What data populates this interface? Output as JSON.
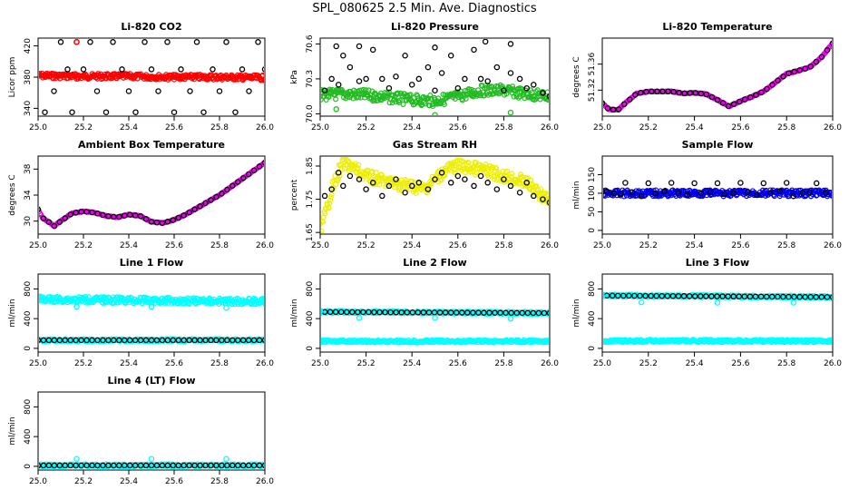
{
  "title": "SPL_080625  2.5 Min. Ave. Diagnostics",
  "chart_data": [
    {
      "type": "scatter",
      "title": "Li-820 CO2",
      "ylabel": "Licor ppm",
      "xlim": [
        25.0,
        26.0
      ],
      "ylim": [
        330,
        430
      ],
      "xticks": [
        "25.0",
        "25.2",
        "25.4",
        "25.6",
        "25.8",
        "26.0"
      ],
      "yticks": [
        "340",
        "380",
        "420"
      ],
      "series": [
        {
          "name": "10 Hz",
          "color": "#ff0000",
          "style": "band",
          "x": [
            25.0,
            25.2,
            25.4,
            25.6,
            25.8,
            26.0
          ],
          "y": [
            382,
            381,
            381,
            380,
            380,
            379
          ],
          "width": 6
        },
        {
          "name": "2.5 min ave",
          "color": "#000000",
          "style": "scatter",
          "x": [
            25.03,
            25.07,
            25.1,
            25.13,
            25.15,
            25.17,
            25.2,
            25.23,
            25.26,
            25.3,
            25.33,
            25.37,
            25.4,
            25.43,
            25.47,
            25.5,
            25.53,
            25.57,
            25.6,
            25.63,
            25.67,
            25.7,
            25.73,
            25.77,
            25.8,
            25.83,
            25.87,
            25.9,
            25.93,
            25.97,
            26.0
          ],
          "y": [
            335,
            362,
            425,
            390,
            335,
            425,
            390,
            425,
            362,
            335,
            425,
            390,
            362,
            335,
            425,
            390,
            362,
            425,
            335,
            390,
            362,
            425,
            335,
            390,
            362,
            425,
            335,
            390,
            362,
            425,
            390
          ]
        },
        {
          "name": "outlier",
          "color": "#ff0000",
          "style": "scatter",
          "x": [
            25.17,
            25.17
          ],
          "y": [
            425,
            378
          ]
        }
      ]
    },
    {
      "type": "scatter",
      "title": "Li-820 Pressure",
      "ylabel": "kPa",
      "xlim": [
        25.0,
        26.0
      ],
      "ylim": [
        69.98,
        70.65
      ],
      "xticks": [
        "25.0",
        "25.2",
        "25.4",
        "25.6",
        "25.8",
        "26.0"
      ],
      "yticks": [
        "70.0",
        "70.3",
        "70.6"
      ],
      "series": [
        {
          "name": "10 Hz",
          "color": "#22bb22",
          "style": "band",
          "x": [
            25.0,
            25.1,
            25.2,
            25.3,
            25.4,
            25.5,
            25.6,
            25.7,
            25.8,
            25.9,
            26.0
          ],
          "y": [
            70.16,
            70.17,
            70.16,
            70.14,
            70.12,
            70.11,
            70.15,
            70.2,
            70.2,
            70.17,
            70.15
          ],
          "width": 12
        },
        {
          "name": "2.5 min ave",
          "color": "#000000",
          "style": "scatter",
          "x": [
            25.02,
            25.05,
            25.08,
            25.1,
            25.13,
            25.17,
            25.2,
            25.23,
            25.27,
            25.3,
            25.33,
            25.37,
            25.4,
            25.43,
            25.47,
            25.5,
            25.53,
            25.57,
            25.6,
            25.63,
            25.67,
            25.7,
            25.73,
            25.77,
            25.8,
            25.83,
            25.87,
            25.9,
            25.93,
            25.97,
            26.0,
            25.07,
            25.17,
            25.5,
            25.72,
            25.83
          ],
          "y": [
            70.2,
            70.3,
            70.25,
            70.5,
            70.4,
            70.28,
            70.3,
            70.55,
            70.3,
            70.22,
            70.32,
            70.5,
            70.25,
            70.3,
            70.4,
            70.2,
            70.35,
            70.5,
            70.22,
            70.3,
            70.55,
            70.3,
            70.28,
            70.4,
            70.2,
            70.35,
            70.3,
            70.22,
            70.25,
            70.18,
            70.15,
            70.58,
            70.58,
            70.57,
            70.62,
            70.6
          ]
        },
        {
          "name": "outlier",
          "color": "#22bb22",
          "style": "scatter",
          "x": [
            25.07,
            25.5,
            25.83
          ],
          "y": [
            70.04,
            69.99,
            70.01
          ]
        }
      ]
    },
    {
      "type": "line",
      "title": "Li-820 Temperature",
      "ylabel": "degrees C",
      "xlim": [
        25.0,
        26.0
      ],
      "ylim": [
        51.28,
        51.4
      ],
      "xticks": [
        "25.0",
        "25.2",
        "25.4",
        "25.6",
        "25.8",
        "26.0"
      ],
      "yticks": [
        "51.32",
        "51.36"
      ],
      "series": [
        {
          "name": "10 Hz",
          "color": "#ee00ee",
          "style": "line",
          "x": [
            25.0,
            25.03,
            25.07,
            25.1,
            25.15,
            25.2,
            25.3,
            25.35,
            25.4,
            25.45,
            25.5,
            25.55,
            25.6,
            25.65,
            25.7,
            25.8,
            25.9,
            25.95,
            26.0
          ],
          "y": [
            51.3,
            51.29,
            51.29,
            51.3,
            51.315,
            51.318,
            51.318,
            51.315,
            51.316,
            51.314,
            51.305,
            51.295,
            51.303,
            51.31,
            51.318,
            51.345,
            51.355,
            51.37,
            51.392
          ],
          "width": 3
        },
        {
          "name": "2.5 min ave",
          "color": "#000000",
          "style": "dots",
          "x": [
            25.0,
            25.03,
            25.07,
            25.1,
            25.15,
            25.2,
            25.3,
            25.35,
            25.4,
            25.45,
            25.5,
            25.55,
            25.6,
            25.65,
            25.7,
            25.8,
            25.9,
            25.95,
            26.0
          ],
          "y": [
            51.3,
            51.29,
            51.29,
            51.3,
            51.315,
            51.318,
            51.318,
            51.315,
            51.316,
            51.314,
            51.305,
            51.295,
            51.303,
            51.31,
            51.318,
            51.345,
            51.355,
            51.37,
            51.392
          ]
        }
      ]
    },
    {
      "type": "line",
      "title": "Ambient Box Temperature",
      "ylabel": "degrees C",
      "xlim": [
        25.0,
        26.0
      ],
      "ylim": [
        28,
        40
      ],
      "xticks": [
        "25.0",
        "25.2",
        "25.4",
        "25.6",
        "25.8",
        "26.0"
      ],
      "yticks": [
        "30",
        "34",
        "38"
      ],
      "series": [
        {
          "name": "10 Hz",
          "color": "#ee00ee",
          "style": "line",
          "x": [
            25.0,
            25.02,
            25.05,
            25.07,
            25.1,
            25.15,
            25.2,
            25.25,
            25.3,
            25.35,
            25.4,
            25.45,
            25.5,
            25.55,
            25.6,
            25.65,
            25.7,
            25.8,
            25.9,
            26.0
          ],
          "y": [
            31.8,
            30.5,
            29.8,
            29.2,
            30.0,
            31.2,
            31.5,
            31.3,
            30.8,
            30.6,
            31.0,
            30.8,
            29.9,
            29.7,
            30.2,
            31.0,
            32.0,
            34.0,
            36.5,
            39.0
          ],
          "width": 3
        },
        {
          "name": "2.5 min ave",
          "color": "#000000",
          "style": "dots",
          "x": [
            25.0,
            25.02,
            25.05,
            25.07,
            25.1,
            25.15,
            25.2,
            25.25,
            25.3,
            25.35,
            25.4,
            25.45,
            25.5,
            25.55,
            25.6,
            25.65,
            25.7,
            25.8,
            25.9,
            26.0
          ],
          "y": [
            31.8,
            30.5,
            29.8,
            29.2,
            30.0,
            31.2,
            31.5,
            31.3,
            30.8,
            30.6,
            31.0,
            30.8,
            29.9,
            29.7,
            30.2,
            31.0,
            32.0,
            34.0,
            36.5,
            39.0
          ]
        }
      ]
    },
    {
      "type": "scatter",
      "title": "Gas Stream RH",
      "ylabel": "percent",
      "xlim": [
        25.0,
        26.0
      ],
      "ylim": [
        1.645,
        1.88
      ],
      "xticks": [
        "25.0",
        "25.2",
        "25.4",
        "25.6",
        "25.8",
        "26.0"
      ],
      "yticks": [
        "1.65",
        "1.75",
        "1.85"
      ],
      "series": [
        {
          "name": "10 Hz",
          "color": "#eeee00",
          "style": "band",
          "x": [
            25.0,
            25.02,
            25.05,
            25.08,
            25.1,
            25.13,
            25.2,
            25.3,
            25.4,
            25.45,
            25.5,
            25.55,
            25.6,
            25.7,
            25.8,
            25.9,
            25.95,
            26.0
          ],
          "y": [
            1.66,
            1.7,
            1.78,
            1.83,
            1.86,
            1.85,
            1.82,
            1.8,
            1.79,
            1.78,
            1.81,
            1.84,
            1.85,
            1.84,
            1.82,
            1.8,
            1.77,
            1.74
          ],
          "width": 14
        },
        {
          "name": "2.5 min ave",
          "color": "#000000",
          "style": "scatter",
          "x": [
            25.02,
            25.05,
            25.08,
            25.1,
            25.13,
            25.17,
            25.2,
            25.23,
            25.27,
            25.3,
            25.33,
            25.37,
            25.4,
            25.43,
            25.47,
            25.5,
            25.53,
            25.57,
            25.6,
            25.63,
            25.67,
            25.7,
            25.73,
            25.77,
            25.8,
            25.83,
            25.87,
            25.9,
            25.93,
            25.97,
            26.0
          ],
          "y": [
            1.76,
            1.78,
            1.83,
            1.79,
            1.82,
            1.81,
            1.78,
            1.8,
            1.76,
            1.79,
            1.81,
            1.77,
            1.79,
            1.8,
            1.78,
            1.81,
            1.83,
            1.8,
            1.82,
            1.81,
            1.79,
            1.82,
            1.8,
            1.78,
            1.81,
            1.79,
            1.77,
            1.8,
            1.76,
            1.75,
            1.74
          ]
        }
      ]
    },
    {
      "type": "scatter",
      "title": "Sample Flow",
      "ylabel": "ml/min",
      "xlim": [
        25.0,
        26.0
      ],
      "ylim": [
        -10,
        200
      ],
      "xticks": [
        "25.0",
        "25.2",
        "25.4",
        "25.6",
        "25.8",
        "26.0"
      ],
      "yticks": [
        "0",
        "50",
        "100",
        "150"
      ],
      "series": [
        {
          "name": "10 Hz",
          "color": "#0000ee",
          "style": "band",
          "x": [
            25.0,
            26.0
          ],
          "y": [
            100,
            100
          ],
          "width": 7
        },
        {
          "name": "2.5 min ave",
          "color": "#000000",
          "style": "scatter",
          "x": [
            25.02,
            25.05,
            25.08,
            25.1,
            25.13,
            25.17,
            25.2,
            25.23,
            25.27,
            25.3,
            25.33,
            25.37,
            25.4,
            25.43,
            25.47,
            25.5,
            25.53,
            25.57,
            25.6,
            25.63,
            25.67,
            25.7,
            25.73,
            25.77,
            25.8,
            25.83,
            25.87,
            25.9,
            25.93,
            25.97
          ],
          "y": [
            105,
            100,
            98,
            128,
            103,
            92,
            127,
            100,
            105,
            128,
            100,
            95,
            127,
            100,
            103,
            127,
            98,
            100,
            128,
            103,
            95,
            127,
            100,
            105,
            128,
            92,
            100,
            103,
            127,
            100
          ]
        }
      ]
    },
    {
      "type": "scatter",
      "title": "Line 1 Flow",
      "ylabel": "ml/min",
      "xlim": [
        25.0,
        26.0
      ],
      "ylim": [
        -50,
        1000
      ],
      "xticks": [
        "25.0",
        "25.2",
        "25.4",
        "25.6",
        "25.8",
        "26.0"
      ],
      "yticks": [
        "0",
        "400",
        "800"
      ],
      "series": [
        {
          "name": "10 Hz upper",
          "color": "#00ffff",
          "style": "band",
          "x": [
            25.0,
            26.0
          ],
          "y": [
            660,
            630
          ],
          "width": 7
        },
        {
          "name": "10 Hz lower",
          "color": "#00ffff",
          "style": "band",
          "x": [
            25.0,
            26.0
          ],
          "y": [
            110,
            110
          ],
          "width": 3
        },
        {
          "name": "2.5 min ave",
          "color": "#000000",
          "style": "dots",
          "x": [
            25.0,
            26.0
          ],
          "y": [
            110,
            110
          ]
        },
        {
          "name": "outlier",
          "color": "#00ffff",
          "style": "scatter",
          "x": [
            25.17,
            25.5,
            25.83
          ],
          "y": [
            560,
            560,
            545
          ]
        }
      ]
    },
    {
      "type": "scatter",
      "title": "Line 2 Flow",
      "ylabel": "ml/min",
      "xlim": [
        25.0,
        26.0
      ],
      "ylim": [
        -50,
        1000
      ],
      "xticks": [
        "25.0",
        "25.2",
        "25.4",
        "25.6",
        "25.8",
        "26.0"
      ],
      "yticks": [
        "0",
        "400",
        "800"
      ],
      "series": [
        {
          "name": "10 Hz lower",
          "color": "#00ffff",
          "style": "band",
          "x": [
            25.0,
            26.0
          ],
          "y": [
            95,
            95
          ],
          "width": 3
        },
        {
          "name": "10 Hz upper",
          "color": "#00ffff",
          "style": "band",
          "x": [
            25.0,
            26.0
          ],
          "y": [
            490,
            475
          ],
          "width": 3
        },
        {
          "name": "2.5 min ave",
          "color": "#000000",
          "style": "dots",
          "x": [
            25.02,
            26.0
          ],
          "y": [
            490,
            475
          ]
        },
        {
          "name": "outlier",
          "color": "#00ffff",
          "style": "scatter",
          "x": [
            25.0,
            25.17,
            25.5,
            25.83
          ],
          "y": [
            500,
            410,
            410,
            400
          ]
        }
      ]
    },
    {
      "type": "scatter",
      "title": "Line 3 Flow",
      "ylabel": "ml/min",
      "xlim": [
        25.0,
        26.0
      ],
      "ylim": [
        -50,
        1000
      ],
      "xticks": [
        "25.0",
        "25.2",
        "25.4",
        "25.6",
        "25.8",
        "26.0"
      ],
      "yticks": [
        "0",
        "400",
        "800"
      ],
      "series": [
        {
          "name": "10 Hz lower",
          "color": "#00ffff",
          "style": "band",
          "x": [
            25.0,
            26.0
          ],
          "y": [
            100,
            100
          ],
          "width": 3
        },
        {
          "name": "10 Hz upper",
          "color": "#00ffff",
          "style": "band",
          "x": [
            25.0,
            26.0
          ],
          "y": [
            710,
            690
          ],
          "width": 3
        },
        {
          "name": "2.5 min ave",
          "color": "#000000",
          "style": "dots",
          "x": [
            25.02,
            26.0
          ],
          "y": [
            710,
            690
          ]
        },
        {
          "name": "outlier",
          "color": "#00ffff",
          "style": "scatter",
          "x": [
            25.0,
            25.17,
            25.5,
            25.83
          ],
          "y": [
            700,
            620,
            615,
            615
          ]
        }
      ]
    },
    {
      "type": "scatter",
      "title": "Line 4 (LT) Flow",
      "ylabel": "ml/min",
      "xlim": [
        25.0,
        26.0
      ],
      "ylim": [
        -50,
        1000
      ],
      "xticks": [
        "25.0",
        "25.2",
        "25.4",
        "25.6",
        "25.8",
        "26.0"
      ],
      "yticks": [
        "0",
        "400",
        "800"
      ],
      "series": [
        {
          "name": "10 Hz",
          "color": "#00ffff",
          "style": "band",
          "x": [
            25.0,
            26.0
          ],
          "y": [
            12,
            12
          ],
          "width": 3
        },
        {
          "name": "2.5 min ave",
          "color": "#000000",
          "style": "dots",
          "x": [
            25.0,
            26.0
          ],
          "y": [
            12,
            12
          ]
        },
        {
          "name": "outlier",
          "color": "#00ffff",
          "style": "scatter",
          "x": [
            25.17,
            25.5,
            25.83
          ],
          "y": [
            100,
            100,
            100
          ]
        }
      ]
    }
  ]
}
